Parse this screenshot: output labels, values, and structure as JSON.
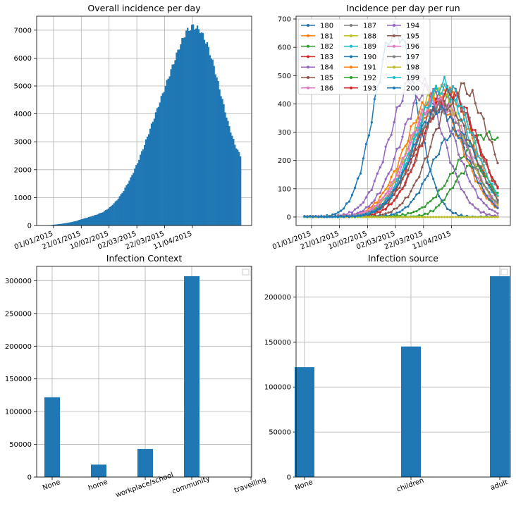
{
  "chart_data": [
    {
      "id": "overall",
      "type": "bar",
      "title": "Overall incidence per day",
      "x_start": "2014-12-27",
      "days": 140,
      "x_ticks": [
        "01/01/2015",
        "21/01/2015",
        "10/02/2015",
        "02/03/2015",
        "22/03/2015",
        "11/04/2015"
      ],
      "ylim": [
        0,
        7500
      ],
      "y_ticks": [
        0,
        1000,
        2000,
        3000,
        4000,
        5000,
        6000,
        7000
      ],
      "grid": true,
      "color": "#1f77b4",
      "curve_keypoints": [
        [
          0,
          0
        ],
        [
          5,
          30
        ],
        [
          10,
          60
        ],
        [
          15,
          100
        ],
        [
          20,
          150
        ],
        [
          25,
          230
        ],
        [
          30,
          300
        ],
        [
          35,
          380
        ],
        [
          40,
          480
        ],
        [
          45,
          650
        ],
        [
          50,
          900
        ],
        [
          55,
          1250
        ],
        [
          60,
          1700
        ],
        [
          65,
          2250
        ],
        [
          70,
          2900
        ],
        [
          75,
          3600
        ],
        [
          80,
          4300
        ],
        [
          85,
          5000
        ],
        [
          90,
          5700
        ],
        [
          95,
          6400
        ],
        [
          100,
          6950
        ],
        [
          105,
          7150
        ],
        [
          110,
          7000
        ],
        [
          115,
          6500
        ],
        [
          120,
          5700
        ],
        [
          125,
          4700
        ],
        [
          130,
          3700
        ],
        [
          135,
          2900
        ],
        [
          139,
          2500
        ]
      ]
    },
    {
      "id": "per_run",
      "type": "line",
      "title": "Incidence per day per run",
      "x_start": "2014-12-27",
      "days": 140,
      "x_ticks": [
        "01/01/2015",
        "21/01/2015",
        "10/02/2015",
        "02/03/2015",
        "22/03/2015",
        "11/04/2015"
      ],
      "ylim": [
        -30,
        710
      ],
      "y_ticks": [
        0,
        100,
        200,
        300,
        400,
        500,
        600,
        700
      ],
      "grid": true,
      "legend_position": "top-left",
      "legend_columns": 3,
      "series": [
        {
          "name": "180",
          "color": "#1f77b4",
          "peak_day": 65,
          "peak": 660,
          "width": 15
        },
        {
          "name": "181",
          "color": "#ff7f0e",
          "peak_day": 100,
          "peak": 450,
          "width": 20
        },
        {
          "name": "182",
          "color": "#2ca02c",
          "peak_day": 130,
          "peak": 290,
          "width": 22
        },
        {
          "name": "183",
          "color": "#d62728",
          "peak_day": 102,
          "peak": 440,
          "width": 21
        },
        {
          "name": "184",
          "color": "#9467bd",
          "peak_day": 80,
          "peak": 500,
          "width": 18
        },
        {
          "name": "185",
          "color": "#8c564b",
          "peak_day": 112,
          "peak": 460,
          "width": 20
        },
        {
          "name": "186",
          "color": "#e377c2",
          "peak_day": 96,
          "peak": 420,
          "width": 20
        },
        {
          "name": "187",
          "color": "#7f7f7f",
          "peak_day": 104,
          "peak": 430,
          "width": 20
        },
        {
          "name": "188",
          "color": "#bcbd22",
          "peak_day": 95,
          "peak": 440,
          "width": 20
        },
        {
          "name": "189",
          "color": "#17becf",
          "peak_day": 98,
          "peak": 450,
          "width": 20
        },
        {
          "name": "190",
          "color": "#1f77b4",
          "peak_day": 108,
          "peak": 300,
          "width": 17
        },
        {
          "name": "191",
          "color": "#ff7f0e",
          "peak_day": 92,
          "peak": 420,
          "width": 20
        },
        {
          "name": "192",
          "color": "#2ca02c",
          "peak_day": 120,
          "peak": 180,
          "width": 14
        },
        {
          "name": "193",
          "color": "#d62728",
          "peak_day": 104,
          "peak": 440,
          "width": 20
        },
        {
          "name": "194",
          "color": "#9467bd",
          "peak_day": 88,
          "peak": 450,
          "width": 19
        },
        {
          "name": "195",
          "color": "#8c564b",
          "peak_day": 100,
          "peak": 400,
          "width": 20
        },
        {
          "name": "196",
          "color": "#e377c2",
          "peak_day": 94,
          "peak": 410,
          "width": 20
        },
        {
          "name": "197",
          "color": "#7f7f7f",
          "peak_day": 97,
          "peak": 390,
          "width": 20
        },
        {
          "name": "198",
          "color": "#bcbd22",
          "peak_day": 98,
          "peak": 0,
          "width": 20
        },
        {
          "name": "199",
          "color": "#17becf",
          "peak_day": 100,
          "peak": 470,
          "width": 20
        },
        {
          "name": "200",
          "color": "#1f77b4",
          "peak_day": 96,
          "peak": 380,
          "width": 19
        }
      ]
    },
    {
      "id": "context",
      "type": "bar",
      "title": "Infection Context",
      "categories": [
        "None",
        "home",
        "workplace/school",
        "community",
        "travelling"
      ],
      "values": [
        122000,
        19000,
        43000,
        307000,
        0
      ],
      "ylim": [
        0,
        322000
      ],
      "y_ticks": [
        0,
        50000,
        100000,
        150000,
        200000,
        250000,
        300000
      ],
      "grid": true,
      "color": "#1f77b4",
      "legend_position": "top-right"
    },
    {
      "id": "source",
      "type": "bar",
      "title": "Infection source",
      "categories": [
        "None",
        "children",
        "adult"
      ],
      "values": [
        122000,
        145000,
        223000
      ],
      "ylim": [
        0,
        234000
      ],
      "y_ticks": [
        0,
        50000,
        100000,
        150000,
        200000
      ],
      "grid": true,
      "color": "#1f77b4",
      "legend_position": "top-right"
    }
  ]
}
